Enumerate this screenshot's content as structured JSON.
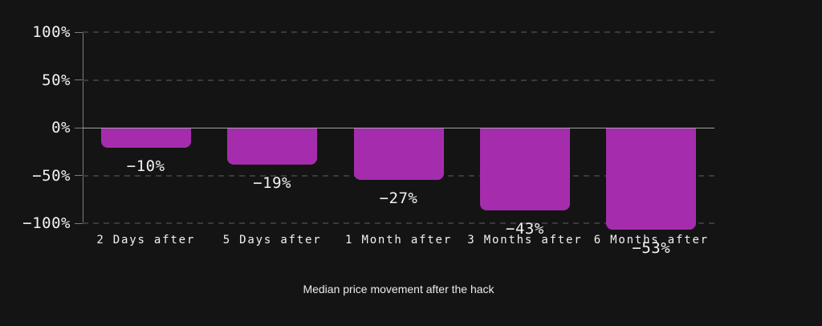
{
  "chart_data": {
    "type": "bar",
    "title": "",
    "caption": "Median price movement after the hack",
    "categories": [
      "2 Days after",
      "5 Days after",
      "1 Month after",
      "3 Months after",
      "6 Months after"
    ],
    "values": [
      -10,
      -19,
      -27,
      -43,
      -53
    ],
    "value_labels": [
      "−10%",
      "−19%",
      "−27%",
      "−43%",
      "−53%"
    ],
    "y_ticks": [
      {
        "label": "100%",
        "value": 100
      },
      {
        "label": "50%",
        "value": 50
      },
      {
        "label": "0%",
        "value": 0
      },
      {
        "label": "−50%",
        "value": -50
      },
      {
        "label": "−100%",
        "value": -100
      }
    ],
    "ylim": [
      -100,
      100
    ],
    "xlabel": "",
    "ylabel": "",
    "grid": "dashed-horizontal",
    "legend": "none"
  },
  "colors": {
    "background": "#141414",
    "bar": "#a52dad",
    "grid": "#3a3a3a",
    "zero_line": "#a3a3a3",
    "axis": "#7d7d7d",
    "text": "#f2f2f2"
  }
}
